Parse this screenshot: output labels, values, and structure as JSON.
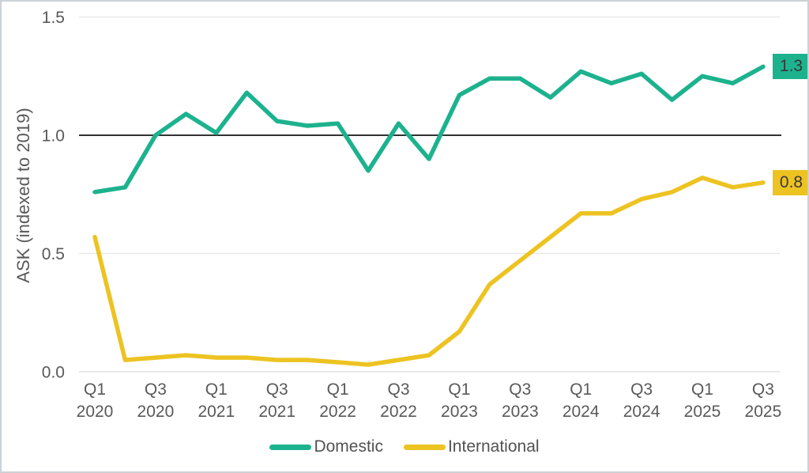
{
  "chart_data": {
    "type": "line",
    "title": "",
    "ylabel": "ASK (indexed to 2019)",
    "xlabel": "",
    "ylim": [
      0.0,
      1.5
    ],
    "yticks": [
      0,
      0.5,
      1,
      1.5
    ],
    "ytick_labels": [
      "0.0",
      "0.5",
      "1.0",
      "1.5"
    ],
    "reference_line": 1.0,
    "grid": "horizontal",
    "legend_position": "bottom",
    "x_label_every": 2,
    "x_categories": [
      "Q1 2020",
      "Q2 2020",
      "Q3 2020",
      "Q4 2020",
      "Q1 2021",
      "Q2 2021",
      "Q3 2021",
      "Q4 2021",
      "Q1 2022",
      "Q2 2022",
      "Q3 2022",
      "Q4 2022",
      "Q1 2023",
      "Q2 2023",
      "Q3 2023",
      "Q4 2023",
      "Q1 2024",
      "Q2 2024",
      "Q3 2024",
      "Q4 2024",
      "Q1 2025",
      "Q2 2025",
      "Q3 2025"
    ],
    "series": [
      {
        "name": "Domestic",
        "color": "#1db28e",
        "end_label": "1.3",
        "values": [
          0.76,
          0.78,
          1.0,
          1.09,
          1.01,
          1.18,
          1.06,
          1.04,
          1.05,
          0.85,
          1.05,
          0.9,
          1.17,
          1.24,
          1.24,
          1.16,
          1.27,
          1.22,
          1.26,
          1.15,
          1.25,
          1.22,
          1.29
        ]
      },
      {
        "name": "International",
        "color": "#edc322",
        "end_label": "0.8",
        "values": [
          0.57,
          0.05,
          0.06,
          0.07,
          0.06,
          0.06,
          0.05,
          0.05,
          0.04,
          0.03,
          0.05,
          0.07,
          0.17,
          0.37,
          0.47,
          0.57,
          0.67,
          0.67,
          0.73,
          0.76,
          0.82,
          0.78,
          0.8
        ]
      }
    ]
  },
  "colors": {
    "reference_line": "#161616",
    "gridline": "#e5e5e5",
    "baseline": "#d9d9d9",
    "axis_text": "#595959",
    "end_label_text": "#383838",
    "background": "#ffffff",
    "border": "#ccd1d4"
  }
}
